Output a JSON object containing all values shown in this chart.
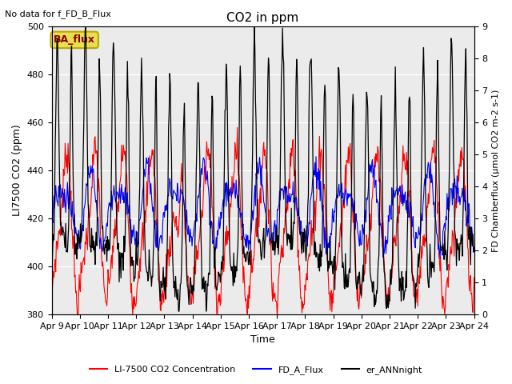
{
  "title": "CO2 in ppm",
  "top_left_text": "No data for f_FD_B_Flux",
  "box_label": "BA_flux",
  "xlabel": "Time",
  "ylabel_left": "LI7500 CO2 (ppm)",
  "ylabel_right": "FD Chamberflux (μmol CO2 m-2 s-1)",
  "ylim_left": [
    380,
    500
  ],
  "ylim_right": [
    0.0,
    9.0
  ],
  "yticks_left": [
    380,
    400,
    420,
    440,
    460,
    480,
    500
  ],
  "yticks_right": [
    0.0,
    1.0,
    2.0,
    3.0,
    4.0,
    5.0,
    6.0,
    7.0,
    8.0,
    9.0
  ],
  "xtick_labels": [
    "Apr 9",
    "Apr 10",
    "Apr 11",
    "Apr 12",
    "Apr 13",
    "Apr 14",
    "Apr 15",
    "Apr 16",
    "Apr 17",
    "Apr 18",
    "Apr 19",
    "Apr 20",
    "Apr 21",
    "Apr 22",
    "Apr 23",
    "Apr 24"
  ],
  "fig_facecolor": "#ffffff",
  "plot_facecolor": "#ebebeb",
  "legend_entries": [
    "LI-7500 CO2 Concentration",
    "FD_A_Flux",
    "er_ANNnight"
  ],
  "red_lw": 0.8,
  "blue_lw": 0.8,
  "black_lw": 0.9
}
